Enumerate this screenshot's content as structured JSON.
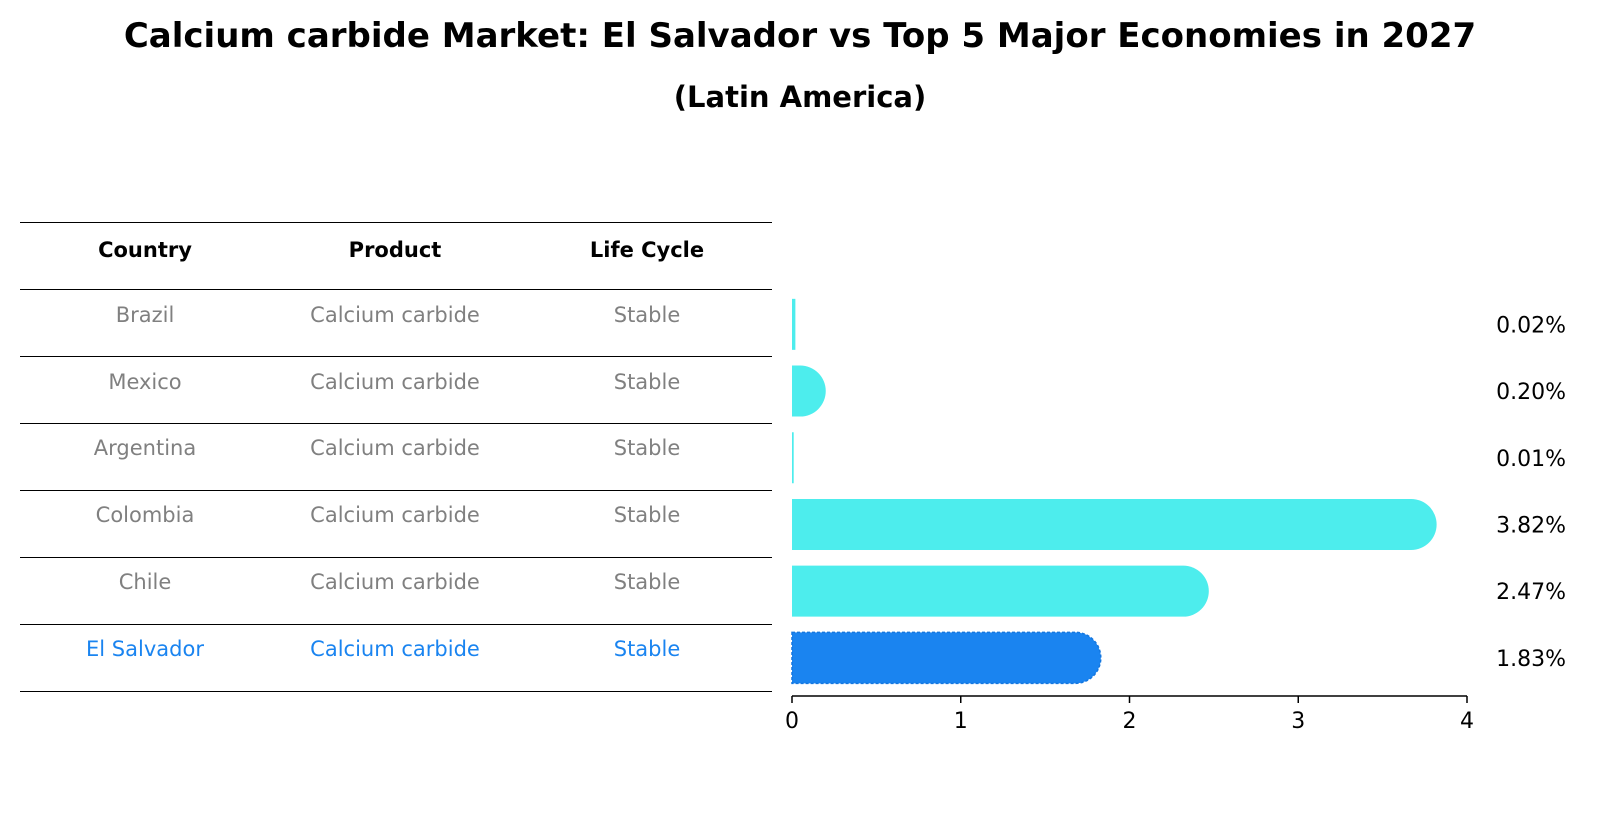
{
  "title": "Calcium carbide Market: El Salvador vs Top 5 Major Economies in 2027",
  "subtitle": "(Latin America)",
  "table": {
    "headers": [
      "Country",
      "Product",
      "Life Cycle"
    ],
    "rows": [
      {
        "country": "Brazil",
        "product": "Calcium carbide",
        "life_cycle": "Stable"
      },
      {
        "country": "Mexico",
        "product": "Calcium carbide",
        "life_cycle": "Stable"
      },
      {
        "country": "Argentina",
        "product": "Calcium carbide",
        "life_cycle": "Stable"
      },
      {
        "country": "Colombia",
        "product": "Calcium carbide",
        "life_cycle": "Stable"
      },
      {
        "country": "Chile",
        "product": "Calcium carbide",
        "life_cycle": "Stable"
      },
      {
        "country": "El Salvador",
        "product": "Calcium carbide",
        "life_cycle": "Stable"
      }
    ],
    "highlight_row": "El Salvador"
  },
  "colors": {
    "bar": "#4deded",
    "highlight_bar": "#1a84f0",
    "highlight_text": "#1a84f0",
    "muted_text": "#808080"
  },
  "chart_data": {
    "type": "bar",
    "orientation": "horizontal",
    "categories": [
      "Brazil",
      "Mexico",
      "Argentina",
      "Colombia",
      "Chile",
      "El Salvador"
    ],
    "values": [
      0.02,
      0.2,
      0.01,
      3.82,
      2.47,
      1.83
    ],
    "value_labels": [
      "0.02%",
      "0.20%",
      "0.01%",
      "3.82%",
      "2.47%",
      "1.83%"
    ],
    "xlim": [
      0,
      4
    ],
    "xticks": [
      "0",
      "1",
      "2",
      "3",
      "4"
    ],
    "highlight": "El Salvador",
    "grid": false
  }
}
